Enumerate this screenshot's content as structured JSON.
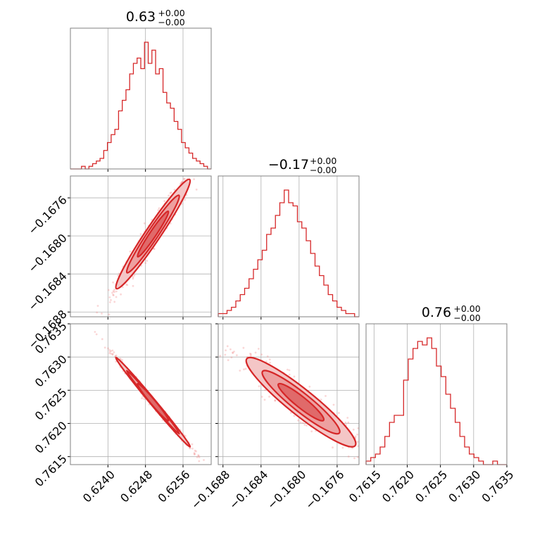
{
  "chart_data": {
    "type": "corner",
    "parameters": [
      {
        "title_value": "0.63",
        "title_upper": "+0.00",
        "title_lower": "−0.00",
        "range": [
          0.6232,
          0.6262
        ],
        "ticks": [
          {
            "v": 0.624,
            "label": "0.6240"
          },
          {
            "v": 0.6248,
            "label": "0.6248"
          },
          {
            "v": 0.6256,
            "label": "0.6256"
          }
        ],
        "hist_counts": [
          0,
          0,
          0,
          1,
          0,
          1,
          2,
          3,
          4,
          7,
          10,
          13,
          15,
          22,
          26,
          30,
          36,
          40,
          42,
          38,
          48,
          40,
          45,
          36,
          38,
          29,
          25,
          23,
          18,
          15,
          10,
          8,
          6,
          4,
          3,
          2,
          1,
          0
        ]
      },
      {
        "title_value": "−0.17",
        "title_upper": "+0.00",
        "title_lower": "−0.00",
        "range": [
          -0.16885,
          -0.16737
        ],
        "ticks": [
          {
            "v": -0.1688,
            "label": "−0.1688"
          },
          {
            "v": -0.1684,
            "label": "−0.1684"
          },
          {
            "v": -0.168,
            "label": "−0.1680"
          },
          {
            "v": -0.1676,
            "label": "−0.1676"
          }
        ],
        "hist_counts": [
          1,
          1,
          2,
          3,
          5,
          7,
          9,
          12,
          15,
          18,
          21,
          26,
          28,
          32,
          36,
          40,
          36,
          35,
          30,
          28,
          24,
          20,
          16,
          13,
          10,
          7,
          5,
          3,
          2,
          1,
          1,
          0
        ]
      },
      {
        "title_value": "0.76",
        "title_upper": "+0.00",
        "title_lower": "−0.00",
        "range": [
          0.76138,
          0.7635
        ],
        "ticks": [
          {
            "v": 0.7615,
            "label": "0.7615"
          },
          {
            "v": 0.762,
            "label": "0.7620"
          },
          {
            "v": 0.7625,
            "label": "0.7625"
          },
          {
            "v": 0.763,
            "label": "0.7630"
          },
          {
            "v": 0.7635,
            "label": "0.7635"
          }
        ],
        "hist_counts": [
          1,
          2,
          3,
          5,
          8,
          12,
          14,
          14,
          24,
          30,
          33,
          35,
          34,
          36,
          33,
          28,
          25,
          20,
          16,
          12,
          8,
          5,
          3,
          2,
          1,
          0,
          0,
          1,
          0,
          0
        ]
      }
    ],
    "color": "#d62728",
    "grid": true,
    "xlabel": "",
    "ylabel": ""
  }
}
